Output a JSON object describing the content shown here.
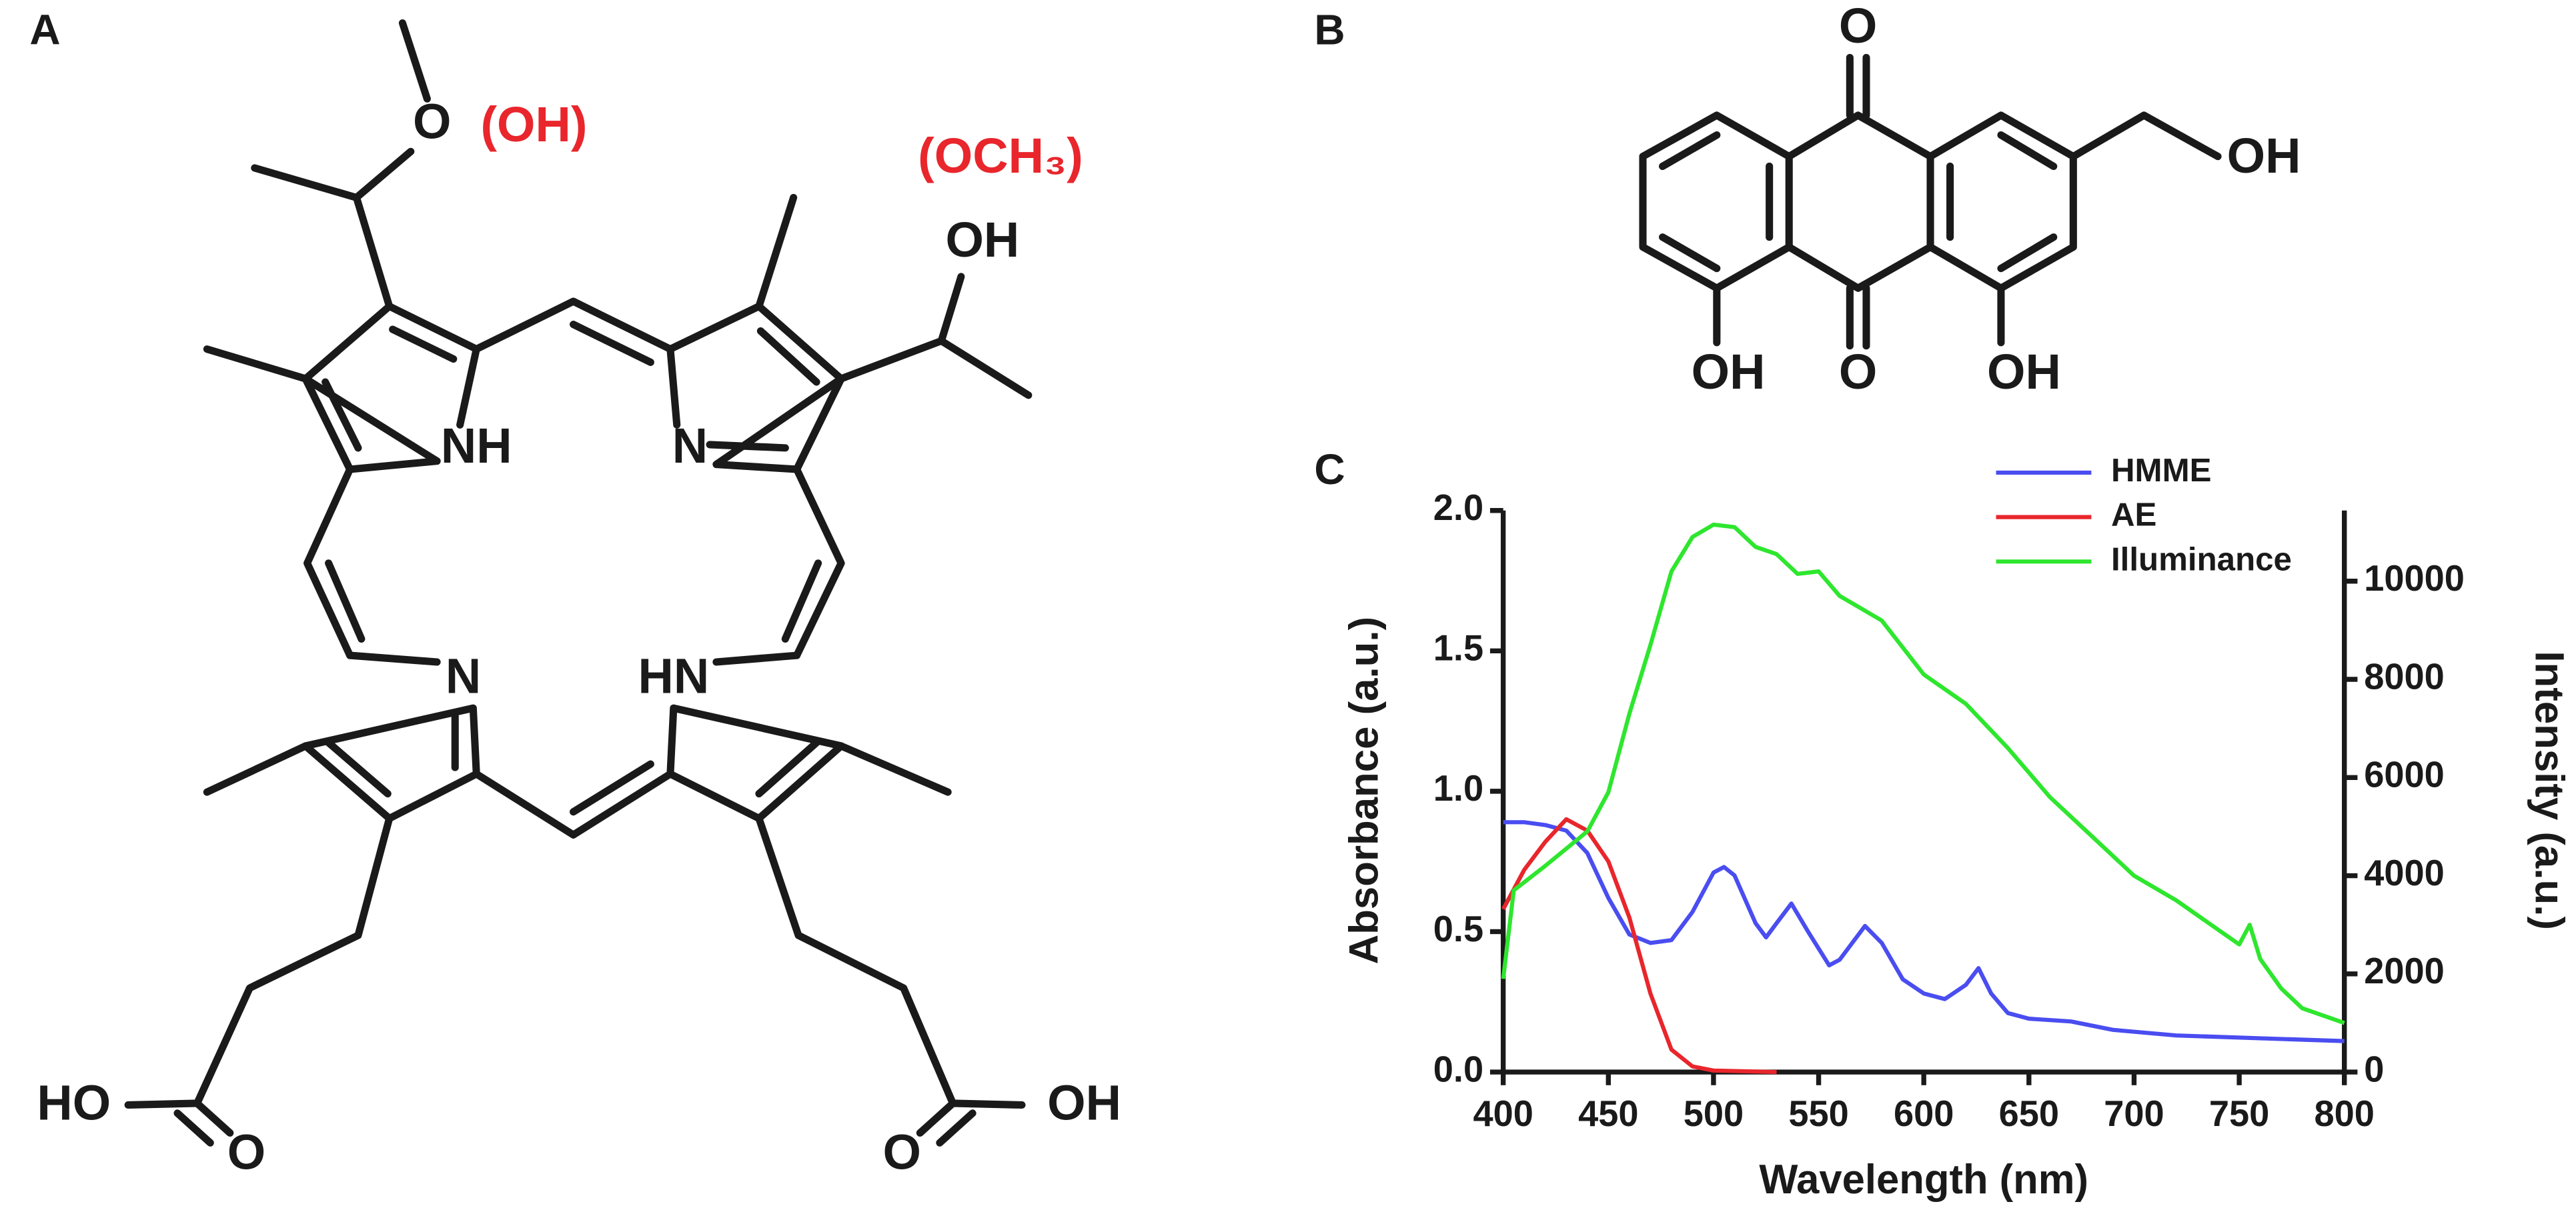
{
  "panels": {
    "A": {
      "label": "A",
      "atoms": [
        "O",
        "(OH)",
        "(OCH₃)",
        "OH",
        "NH",
        "N",
        "N",
        "HN",
        "HO",
        "O",
        "OH",
        "O"
      ]
    },
    "B": {
      "label": "B",
      "atoms": [
        "O",
        "OH",
        "O",
        "OH",
        "OH"
      ]
    },
    "C": {
      "label": "C"
    }
  },
  "chart_data": {
    "type": "line",
    "xlabel": "Wavelength (nm)",
    "ylabel": "Absorbance (a.u.)",
    "y2label": "Intensity (a.u.)",
    "xlim": [
      400,
      800
    ],
    "xticks": [
      400,
      450,
      500,
      550,
      600,
      650,
      700,
      750,
      800
    ],
    "ylim": [
      0,
      2
    ],
    "yticks": [
      {
        "value": 0,
        "label": "0.0"
      },
      0.5,
      {
        "value": 1,
        "label": "1.0"
      },
      1.5,
      {
        "value": 2,
        "label": "2.0"
      }
    ],
    "y2lim": [
      0,
      11440
    ],
    "y2ticks": [
      0,
      2000,
      4000,
      6000,
      8000,
      10000
    ],
    "series": [
      {
        "name": "HMME",
        "color": "#4a4df0",
        "x": [
          400,
          410,
          420,
          430,
          440,
          450,
          460,
          470,
          480,
          490,
          500,
          505,
          510,
          520,
          525,
          530,
          537,
          545,
          555,
          560,
          572,
          580,
          590,
          600,
          610,
          620,
          626,
          632,
          640,
          650,
          670,
          690,
          720,
          760,
          800
        ],
        "values": [
          0.89,
          0.89,
          0.88,
          0.86,
          0.78,
          0.62,
          0.49,
          0.46,
          0.47,
          0.57,
          0.71,
          0.73,
          0.7,
          0.53,
          0.48,
          0.53,
          0.6,
          0.5,
          0.38,
          0.4,
          0.52,
          0.46,
          0.33,
          0.28,
          0.26,
          0.31,
          0.37,
          0.28,
          0.21,
          0.19,
          0.18,
          0.15,
          0.13,
          0.12,
          0.11
        ]
      },
      {
        "name": "AE",
        "color": "#e8262c",
        "x": [
          400,
          410,
          420,
          430,
          440,
          450,
          460,
          470,
          480,
          490,
          500,
          530
        ],
        "values": [
          0.58,
          0.72,
          0.82,
          0.9,
          0.86,
          0.75,
          0.55,
          0.28,
          0.08,
          0.02,
          0.005,
          0
        ]
      },
      {
        "name": "Illuminance",
        "color": "#2ee62e",
        "axis": "y2",
        "x": [
          400,
          405,
          420,
          440,
          450,
          460,
          470,
          480,
          490,
          500,
          510,
          520,
          530,
          540,
          550,
          560,
          580,
          600,
          620,
          640,
          660,
          680,
          700,
          720,
          740,
          750,
          755,
          760,
          770,
          780,
          800
        ],
        "values": [
          1900,
          3700,
          4200,
          4900,
          5700,
          7300,
          8700,
          10200,
          10900,
          11150,
          11100,
          10700,
          10550,
          10150,
          10200,
          9700,
          9200,
          8100,
          7500,
          6600,
          5600,
          4800,
          4000,
          3500,
          2900,
          2600,
          3000,
          2300,
          1700,
          1300,
          1000
        ]
      }
    ],
    "legend": "upper right"
  }
}
